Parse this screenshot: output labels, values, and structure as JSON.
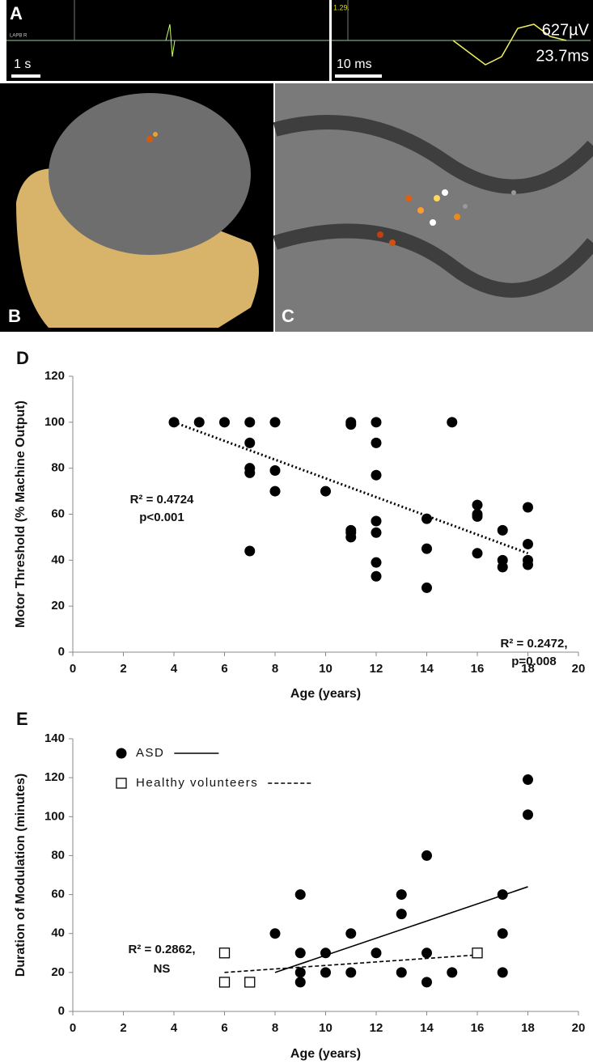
{
  "panels": {
    "A": {
      "label": "A",
      "channel": "LAPB R",
      "marker": "1.29.",
      "scale_left": "1 s",
      "scale_right": "10 ms",
      "amplitude": "627µV",
      "latency": "23.7ms"
    },
    "B": {
      "label": "B"
    },
    "C": {
      "label": "C"
    }
  },
  "chart_data": [
    {
      "type": "scatter",
      "panel": "D",
      "x_label": "Age (years)",
      "y_label": "Motor Threshold (% Machine Output)",
      "xlim": [
        0,
        20
      ],
      "xticks": [
        0,
        2,
        4,
        6,
        8,
        10,
        12,
        14,
        16,
        18,
        20
      ],
      "ylim": [
        0,
        120
      ],
      "yticks": [
        0,
        20,
        40,
        60,
        80,
        100,
        120
      ],
      "annotations": [
        "R² = 0.4724",
        "p<0.001"
      ],
      "series": [
        {
          "marker": "circle",
          "color": "#000000",
          "x": [
            4,
            5,
            6,
            7,
            7,
            7,
            7,
            7,
            8,
            8,
            8,
            10,
            11,
            11,
            11,
            11,
            11,
            12,
            12,
            12,
            12,
            12,
            12,
            12,
            14,
            14,
            14,
            15,
            16,
            16,
            16,
            16,
            17,
            17,
            17,
            18,
            18,
            18,
            18
          ],
          "values": [
            100,
            100,
            100,
            100,
            91,
            80,
            78,
            44,
            100,
            79,
            70,
            70,
            100,
            99,
            53,
            52,
            50,
            100,
            91,
            77,
            57,
            52,
            39,
            33,
            58,
            45,
            28,
            100,
            64,
            60,
            59,
            43,
            53,
            40,
            37,
            63,
            47,
            40,
            38
          ],
          "trendline": {
            "style": "dotted",
            "x": [
              4,
              18
            ],
            "values": [
              100,
              43
            ]
          }
        }
      ]
    },
    {
      "type": "scatter",
      "panel": "E",
      "x_label": "Age (years)",
      "y_label": "Duration of Modulation (minutes)",
      "xlim": [
        0,
        20
      ],
      "xticks": [
        0,
        2,
        4,
        6,
        8,
        10,
        12,
        14,
        16,
        18,
        20
      ],
      "ylim": [
        0,
        140
      ],
      "yticks": [
        0,
        20,
        40,
        60,
        80,
        100,
        120,
        140
      ],
      "annotations": [
        "R² = 0.2472,",
        "p=0.008",
        "R² = 0.2862,",
        "NS"
      ],
      "series": [
        {
          "name": "ASD",
          "marker": "circle",
          "color": "#000000",
          "x": [
            8,
            9,
            9,
            9,
            9,
            10,
            10,
            11,
            11,
            12,
            13,
            13,
            13,
            14,
            14,
            14,
            15,
            17,
            17,
            17,
            18,
            18
          ],
          "values": [
            40,
            60,
            30,
            20,
            15,
            30,
            20,
            40,
            20,
            30,
            60,
            50,
            20,
            80,
            30,
            15,
            20,
            60,
            40,
            20,
            119,
            101
          ],
          "trendline": {
            "style": "solid",
            "x": [
              8,
              18
            ],
            "values": [
              20,
              64
            ]
          }
        },
        {
          "name": "Healthy volunteers",
          "marker": "square",
          "color": "#000000",
          "x": [
            6,
            6,
            7,
            16
          ],
          "values": [
            30,
            15,
            15,
            30
          ],
          "trendline": {
            "style": "dashed",
            "x": [
              6,
              16
            ],
            "values": [
              20,
              29
            ]
          }
        }
      ]
    }
  ]
}
